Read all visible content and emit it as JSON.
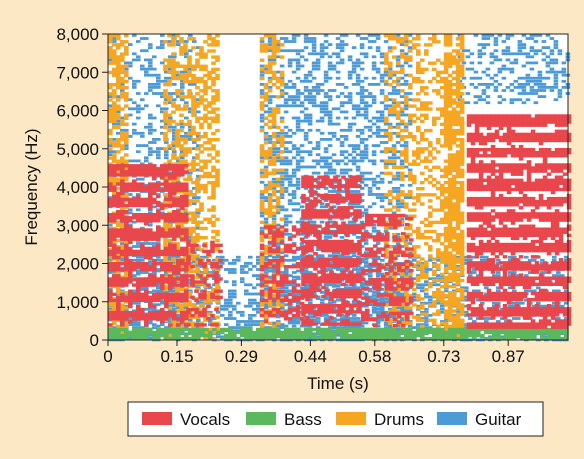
{
  "chart_data": {
    "type": "heatmap",
    "subtype": "source-separation spectrogram",
    "xlabel": "Time (s)",
    "ylabel": "Frequency (Hz)",
    "xlim": [
      0,
      1.0
    ],
    "ylim": [
      0,
      8000
    ],
    "x_ticks": [
      0,
      0.15,
      0.29,
      0.44,
      0.58,
      0.73,
      0.87
    ],
    "x_tick_labels": [
      "0",
      "0.15",
      "0.29",
      "0.44",
      "0.58",
      "0.73",
      "0.87"
    ],
    "y_ticks": [
      0,
      1000,
      2000,
      3000,
      4000,
      5000,
      6000,
      7000,
      8000
    ],
    "y_tick_labels": [
      "0",
      "1,000",
      "2,000",
      "3,000",
      "4,000",
      "5,000",
      "6,000",
      "7,000",
      "8,000"
    ],
    "grid": false,
    "legend_position": "bottom",
    "series": [
      {
        "name": "Vocals",
        "color": "#e8474c",
        "regions": [
          {
            "t": [
              0.0,
              0.17
            ],
            "f": [
              400,
              4600
            ],
            "density": 0.92
          },
          {
            "t": [
              0.17,
              0.24
            ],
            "f": [
              400,
              2600
            ],
            "density": 0.45
          },
          {
            "t": [
              0.33,
              0.42
            ],
            "f": [
              500,
              3000
            ],
            "density": 0.55
          },
          {
            "t": [
              0.42,
              0.55
            ],
            "f": [
              400,
              4300
            ],
            "density": 0.9
          },
          {
            "t": [
              0.55,
              0.66
            ],
            "f": [
              400,
              3300
            ],
            "density": 0.6
          },
          {
            "t": [
              0.78,
              1.0
            ],
            "f": [
              300,
              5900
            ],
            "density": 0.95
          }
        ]
      },
      {
        "name": "Bass",
        "color": "#5cb85c",
        "regions": [
          {
            "t": [
              0.0,
              1.0
            ],
            "f": [
              0,
              320
            ],
            "density": 0.85
          }
        ]
      },
      {
        "name": "Drums",
        "color": "#f5a623",
        "regions": [
          {
            "t": [
              0.0,
              0.04
            ],
            "f": [
              0,
              8000
            ],
            "density": 0.55
          },
          {
            "t": [
              0.12,
              0.24
            ],
            "f": [
              0,
              8000
            ],
            "density": 0.45
          },
          {
            "t": [
              0.33,
              0.38
            ],
            "f": [
              0,
              8000
            ],
            "density": 0.4
          },
          {
            "t": [
              0.6,
              0.73
            ],
            "f": [
              0,
              8000
            ],
            "density": 0.35
          },
          {
            "t": [
              0.73,
              0.77
            ],
            "f": [
              0,
              8000
            ],
            "density": 0.8
          }
        ]
      },
      {
        "name": "Guitar",
        "color": "#4d9bd6",
        "regions": [
          {
            "t": [
              0.0,
              0.2
            ],
            "f": [
              0,
              8000
            ],
            "density": 0.3
          },
          {
            "t": [
              0.33,
              0.66
            ],
            "f": [
              0,
              8000
            ],
            "density": 0.4
          },
          {
            "t": [
              0.76,
              1.0
            ],
            "f": [
              6200,
              8000
            ],
            "density": 0.35
          },
          {
            "t": [
              0.0,
              1.0
            ],
            "f": [
              0,
              2200
            ],
            "density": 0.45
          }
        ]
      }
    ]
  }
}
